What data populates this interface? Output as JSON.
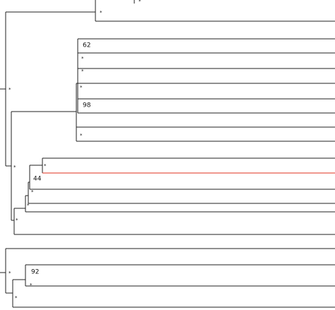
{
  "labels": [
    "*",
    "*",
    "*",
    "62",
    "*",
    "*",
    "*",
    "98",
    "*",
    "*",
    "*",
    "44",
    "*",
    "*",
    "*",
    "*",
    "92",
    "*",
    "*"
  ]
}
